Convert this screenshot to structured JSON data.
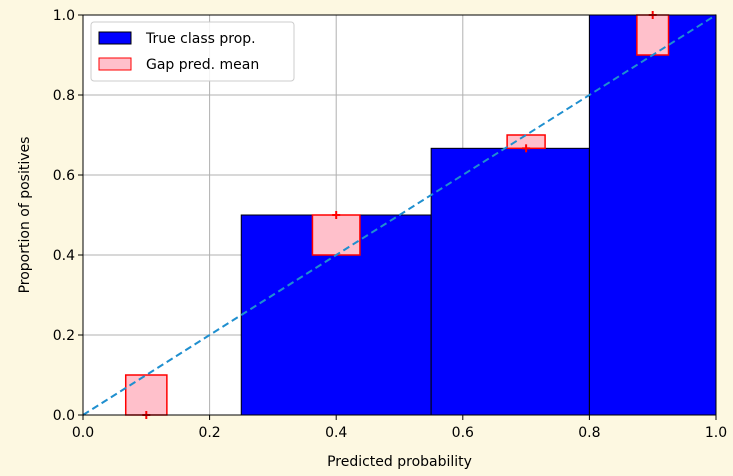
{
  "chart_data": {
    "type": "bar",
    "xlabel": "Predicted probability",
    "ylabel": "Proportion of positives",
    "xlim": [
      0.0,
      1.0
    ],
    "ylim": [
      0.0,
      1.0
    ],
    "grid": true,
    "legend_position": "top-left",
    "x_ticks": [
      "0.0",
      "0.2",
      "0.4",
      "0.6",
      "0.8",
      "1.0"
    ],
    "y_ticks": [
      "0.0",
      "0.2",
      "0.4",
      "0.6",
      "0.8",
      "1.0"
    ],
    "series": [
      {
        "name": "True class prop.",
        "color": "#0000ff",
        "bins": [
          {
            "x_start": 0.25,
            "x_end": 0.55,
            "value": 0.5
          },
          {
            "x_start": 0.55,
            "x_end": 0.8,
            "value": 0.6667
          },
          {
            "x_start": 0.8,
            "x_end": 1.0,
            "value": 1.0
          }
        ]
      },
      {
        "name": "Gap pred. mean",
        "color": "#ffc0cb",
        "edge_color": "#ff0000",
        "boxes": [
          {
            "x_center": 0.1,
            "width": 0.065,
            "bottom": 0.0,
            "top": 0.1
          },
          {
            "x_center": 0.4,
            "width": 0.075,
            "bottom": 0.4,
            "top": 0.5
          },
          {
            "x_center": 0.7,
            "width": 0.06,
            "bottom": 0.6667,
            "top": 0.7
          },
          {
            "x_center": 0.9,
            "width": 0.05,
            "bottom": 0.9,
            "top": 1.0
          }
        ],
        "markers": [
          {
            "x": 0.1,
            "y": 0.0
          },
          {
            "x": 0.4,
            "y": 0.5
          },
          {
            "x": 0.7,
            "y": 0.6667
          },
          {
            "x": 0.9,
            "y": 1.0
          }
        ]
      }
    ],
    "reference_line": {
      "style": "dashed",
      "color": "#1f8fcf",
      "x": [
        0.0,
        1.0
      ],
      "y": [
        0.0,
        1.0
      ]
    }
  }
}
